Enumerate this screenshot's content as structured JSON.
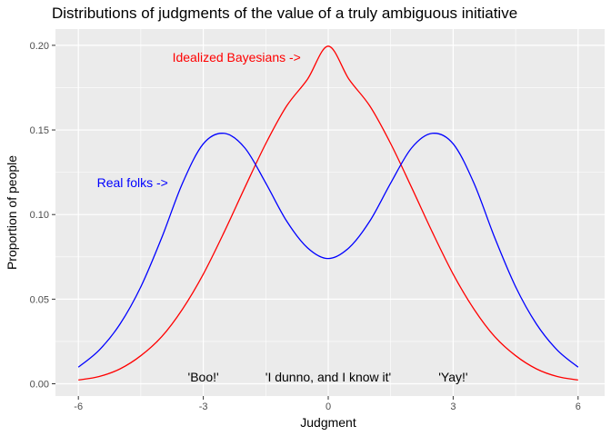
{
  "chart_data": {
    "type": "line",
    "title": "Distributions of judgments of the value of a truly ambiguous initiative",
    "xlabel": "Judgment",
    "ylabel": "Proportion of people",
    "xlim": [
      -6,
      6
    ],
    "ylim": [
      0,
      0.2
    ],
    "x_ticks": [
      -6,
      -3,
      0,
      3,
      6
    ],
    "x_tick_labels": [
      "-6",
      "-3",
      "0",
      "3",
      "6"
    ],
    "y_ticks": [
      0,
      0.05,
      0.1,
      0.15,
      0.2
    ],
    "y_tick_labels": [
      "0.00",
      "0.05",
      "0.10",
      "0.15",
      "0.20"
    ],
    "grid": true,
    "x": [
      -6,
      -5.5,
      -5,
      -4.5,
      -4,
      -3.5,
      -3,
      -2.5,
      -2,
      -1.5,
      -1,
      -0.5,
      0,
      0.5,
      1,
      1.5,
      2,
      2.5,
      3,
      3.5,
      4,
      4.5,
      5,
      5.5,
      6
    ],
    "series": [
      {
        "color": "#ff0000",
        "values": [
          0.0022,
          0.0043,
          0.0088,
          0.0166,
          0.0278,
          0.0441,
          0.0648,
          0.0896,
          0.1161,
          0.1419,
          0.1641,
          0.1799,
          0.1995,
          0.1799,
          0.1641,
          0.1419,
          0.1161,
          0.0896,
          0.0648,
          0.0441,
          0.0278,
          0.0166,
          0.0088,
          0.0043,
          0.0022
        ]
      },
      {
        "color": "#0000ff",
        "values": [
          0.0098,
          0.0199,
          0.0353,
          0.0573,
          0.0862,
          0.1185,
          0.1418,
          0.148,
          0.1393,
          0.1186,
          0.0962,
          0.0804,
          0.074,
          0.0804,
          0.0962,
          0.1186,
          0.1393,
          0.148,
          0.1418,
          0.1185,
          0.0862,
          0.0573,
          0.0353,
          0.0199,
          0.0098
        ]
      }
    ],
    "annotations": [
      {
        "text": "Idealized Bayesians ->",
        "x": -2.2,
        "y": 0.193,
        "color": "#ff0000"
      },
      {
        "text": "Real folks ->",
        "x": -4.7,
        "y": 0.119,
        "color": "#0000ff"
      },
      {
        "text": "'Boo!'",
        "x": -3,
        "y": 0.004,
        "color": "#000000"
      },
      {
        "text": "'I dunno, and I know it'",
        "x": 0,
        "y": 0.004,
        "color": "#000000"
      },
      {
        "text": "'Yay!'",
        "x": 3,
        "y": 0.004,
        "color": "#000000"
      }
    ]
  }
}
